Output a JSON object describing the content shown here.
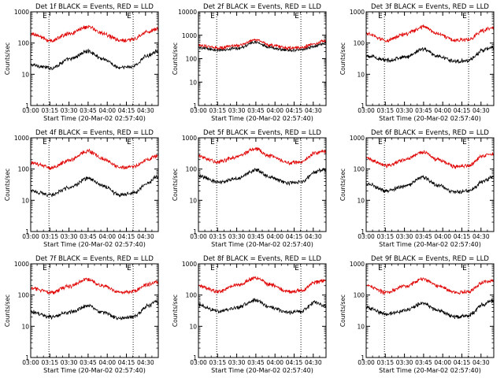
{
  "figure": {
    "ylabel": "Counts/sec",
    "xlabel": "Start Time (20-Mar-02 02:57:40)",
    "x_ticks": [
      "03:00",
      "03:15",
      "03:30",
      "03:45",
      "04:00",
      "04:15",
      "04:30"
    ],
    "y_ticks": [
      "1",
      "10",
      "100",
      "1000"
    ],
    "event_marker": "E",
    "colors": {
      "events": "#000000",
      "lld": "#e00000"
    }
  },
  "chart_data": [
    {
      "type": "line",
      "title": "Det 1f BLACK = Events, RED = LLD",
      "x_unit": "minutes after 03:00",
      "xlim": [
        0,
        100
      ],
      "ylim": [
        1,
        1000
      ],
      "yscale": "log",
      "grid": false,
      "markers": [
        {
          "x": 14.3,
          "label": "E"
        },
        {
          "x": 80.3,
          "label": "E"
        }
      ],
      "series": [
        {
          "color": "#000000",
          "points": [
            [
              0,
              20
            ],
            [
              16,
              16
            ],
            [
              30,
              30
            ],
            [
              45,
              55
            ],
            [
              56,
              32
            ],
            [
              70,
              16
            ],
            [
              80,
              18
            ],
            [
              92,
              40
            ],
            [
              98,
              55
            ]
          ]
        },
        {
          "color": "#e00000",
          "points": [
            [
              0,
              200
            ],
            [
              16,
              120
            ],
            [
              30,
              200
            ],
            [
              45,
              330
            ],
            [
              56,
              210
            ],
            [
              70,
              120
            ],
            [
              80,
              130
            ],
            [
              92,
              230
            ],
            [
              98,
              280
            ]
          ]
        }
      ]
    },
    {
      "type": "line",
      "title": "Det 2f BLACK = Events, RED = LLD",
      "x_unit": "minutes after 03:00",
      "xlim": [
        0,
        100
      ],
      "ylim": [
        1,
        10000
      ],
      "yscale": "log",
      "grid": false,
      "markers": [
        {
          "x": 14.3,
          "label": "E"
        },
        {
          "x": 80.3,
          "label": "E"
        }
      ],
      "series": [
        {
          "color": "#000000",
          "points": [
            [
              0,
              300
            ],
            [
              16,
              230
            ],
            [
              30,
              280
            ],
            [
              45,
              500
            ],
            [
              56,
              300
            ],
            [
              70,
              230
            ],
            [
              80,
              240
            ],
            [
              92,
              350
            ],
            [
              98,
              450
            ]
          ]
        },
        {
          "color": "#e00000",
          "points": [
            [
              0,
              380
            ],
            [
              16,
              290
            ],
            [
              30,
              360
            ],
            [
              45,
              650
            ],
            [
              56,
              380
            ],
            [
              70,
              290
            ],
            [
              80,
              300
            ],
            [
              92,
              450
            ],
            [
              98,
              560
            ]
          ]
        }
      ]
    },
    {
      "type": "line",
      "title": "Det 3f BLACK = Events, RED = LLD",
      "x_unit": "minutes after 03:00",
      "xlim": [
        0,
        100
      ],
      "ylim": [
        1,
        1000
      ],
      "yscale": "log",
      "grid": false,
      "markers": [
        {
          "x": 14.3,
          "label": "E"
        },
        {
          "x": 80.3,
          "label": "E"
        }
      ],
      "series": [
        {
          "color": "#000000",
          "points": [
            [
              0,
              40
            ],
            [
              16,
              28
            ],
            [
              30,
              35
            ],
            [
              45,
              65
            ],
            [
              56,
              38
            ],
            [
              70,
              26
            ],
            [
              80,
              28
            ],
            [
              92,
              60
            ],
            [
              98,
              70
            ]
          ]
        },
        {
          "color": "#e00000",
          "points": [
            [
              0,
              200
            ],
            [
              16,
              120
            ],
            [
              30,
              190
            ],
            [
              45,
              330
            ],
            [
              56,
              200
            ],
            [
              70,
              120
            ],
            [
              80,
              130
            ],
            [
              92,
              260
            ],
            [
              98,
              300
            ]
          ]
        }
      ]
    },
    {
      "type": "line",
      "title": "Det 4f BLACK = Events, RED = LLD",
      "x_unit": "minutes after 03:00",
      "xlim": [
        0,
        100
      ],
      "ylim": [
        1,
        1000
      ],
      "yscale": "log",
      "grid": false,
      "markers": [
        {
          "x": 14.3,
          "label": "E"
        },
        {
          "x": 80.3,
          "label": "E"
        }
      ],
      "series": [
        {
          "color": "#000000",
          "points": [
            [
              0,
              20
            ],
            [
              16,
              15
            ],
            [
              30,
              25
            ],
            [
              45,
              50
            ],
            [
              56,
              30
            ],
            [
              70,
              15
            ],
            [
              80,
              17
            ],
            [
              92,
              35
            ],
            [
              98,
              55
            ]
          ]
        },
        {
          "color": "#e00000",
          "points": [
            [
              0,
              160
            ],
            [
              16,
              110
            ],
            [
              30,
              190
            ],
            [
              45,
              380
            ],
            [
              56,
              220
            ],
            [
              70,
              110
            ],
            [
              80,
              120
            ],
            [
              92,
              200
            ],
            [
              98,
              260
            ]
          ]
        }
      ]
    },
    {
      "type": "line",
      "title": "Det 5f BLACK = Events, RED = LLD",
      "x_unit": "minutes after 03:00",
      "xlim": [
        0,
        100
      ],
      "ylim": [
        1,
        1000
      ],
      "yscale": "log",
      "grid": false,
      "markers": [
        {
          "x": 14.3,
          "label": "E"
        },
        {
          "x": 80.3,
          "label": "E"
        }
      ],
      "series": [
        {
          "color": "#000000",
          "points": [
            [
              0,
              60
            ],
            [
              16,
              38
            ],
            [
              30,
              50
            ],
            [
              45,
              95
            ],
            [
              56,
              55
            ],
            [
              70,
              36
            ],
            [
              80,
              38
            ],
            [
              92,
              80
            ],
            [
              98,
              100
            ]
          ]
        },
        {
          "color": "#e00000",
          "points": [
            [
              0,
              260
            ],
            [
              16,
              170
            ],
            [
              30,
              250
            ],
            [
              45,
              440
            ],
            [
              56,
              260
            ],
            [
              70,
              160
            ],
            [
              80,
              170
            ],
            [
              92,
              330
            ],
            [
              98,
              380
            ]
          ]
        }
      ]
    },
    {
      "type": "line",
      "title": "Det 6f BLACK = Events, RED = LLD",
      "x_unit": "minutes after 03:00",
      "xlim": [
        0,
        100
      ],
      "ylim": [
        1,
        1000
      ],
      "yscale": "log",
      "grid": false,
      "markers": [
        {
          "x": 14.3,
          "label": "E"
        },
        {
          "x": 80.3,
          "label": "E"
        }
      ],
      "series": [
        {
          "color": "#000000",
          "points": [
            [
              0,
              35
            ],
            [
              16,
              20
            ],
            [
              30,
              28
            ],
            [
              45,
              55
            ],
            [
              56,
              30
            ],
            [
              70,
              18
            ],
            [
              80,
              20
            ],
            [
              92,
              40
            ],
            [
              98,
              55
            ]
          ]
        },
        {
          "color": "#e00000",
          "points": [
            [
              0,
              220
            ],
            [
              16,
              130
            ],
            [
              30,
              200
            ],
            [
              45,
              350
            ],
            [
              56,
              200
            ],
            [
              70,
              120
            ],
            [
              80,
              130
            ],
            [
              92,
              270
            ],
            [
              98,
              300
            ]
          ]
        }
      ]
    },
    {
      "type": "line",
      "title": "Det 7f BLACK = Events, RED = LLD",
      "x_unit": "minutes after 03:00",
      "xlim": [
        0,
        100
      ],
      "ylim": [
        1,
        1000
      ],
      "yscale": "log",
      "grid": false,
      "markers": [
        {
          "x": 14.3,
          "label": "E"
        },
        {
          "x": 80.3,
          "label": "E"
        }
      ],
      "series": [
        {
          "color": "#000000",
          "points": [
            [
              0,
              30
            ],
            [
              16,
              20
            ],
            [
              30,
              28
            ],
            [
              45,
              45
            ],
            [
              56,
              28
            ],
            [
              70,
              18
            ],
            [
              80,
              20
            ],
            [
              92,
              45
            ],
            [
              98,
              60
            ]
          ]
        },
        {
          "color": "#e00000",
          "points": [
            [
              0,
              170
            ],
            [
              16,
              120
            ],
            [
              30,
              190
            ],
            [
              45,
              320
            ],
            [
              56,
              200
            ],
            [
              70,
              120
            ],
            [
              80,
              130
            ],
            [
              92,
              220
            ],
            [
              98,
              260
            ]
          ]
        }
      ]
    },
    {
      "type": "line",
      "title": "Det 8f BLACK = Events, RED = LLD",
      "x_unit": "minutes after 03:00",
      "xlim": [
        0,
        100
      ],
      "ylim": [
        1,
        1000
      ],
      "yscale": "log",
      "grid": false,
      "markers": [
        {
          "x": 14.3,
          "label": "E"
        },
        {
          "x": 80.3,
          "label": "E"
        }
      ],
      "series": [
        {
          "color": "#000000",
          "points": [
            [
              0,
              50
            ],
            [
              16,
              30
            ],
            [
              30,
              40
            ],
            [
              45,
              70
            ],
            [
              56,
              40
            ],
            [
              70,
              28
            ],
            [
              80,
              30
            ],
            [
              92,
              60
            ],
            [
              98,
              45
            ]
          ]
        },
        {
          "color": "#e00000",
          "points": [
            [
              0,
              200
            ],
            [
              16,
              130
            ],
            [
              30,
              210
            ],
            [
              45,
              360
            ],
            [
              56,
              220
            ],
            [
              70,
              130
            ],
            [
              80,
              140
            ],
            [
              92,
              260
            ],
            [
              98,
              290
            ]
          ]
        }
      ]
    },
    {
      "type": "line",
      "title": "Det 9f BLACK = Events, RED = LLD",
      "x_unit": "minutes after 03:00",
      "xlim": [
        0,
        100
      ],
      "ylim": [
        1,
        1000
      ],
      "yscale": "log",
      "grid": false,
      "markers": [
        {
          "x": 14.3,
          "label": "E"
        },
        {
          "x": 80.3,
          "label": "E"
        }
      ],
      "series": [
        {
          "color": "#000000",
          "points": [
            [
              0,
              40
            ],
            [
              16,
              25
            ],
            [
              30,
              32
            ],
            [
              45,
              55
            ],
            [
              56,
              32
            ],
            [
              70,
              20
            ],
            [
              80,
              22
            ],
            [
              92,
              50
            ],
            [
              98,
              65
            ]
          ]
        },
        {
          "color": "#e00000",
          "points": [
            [
              0,
              200
            ],
            [
              16,
              120
            ],
            [
              30,
              190
            ],
            [
              45,
              330
            ],
            [
              56,
              200
            ],
            [
              70,
              120
            ],
            [
              80,
              130
            ],
            [
              92,
              250
            ],
            [
              98,
              290
            ]
          ]
        }
      ]
    }
  ]
}
